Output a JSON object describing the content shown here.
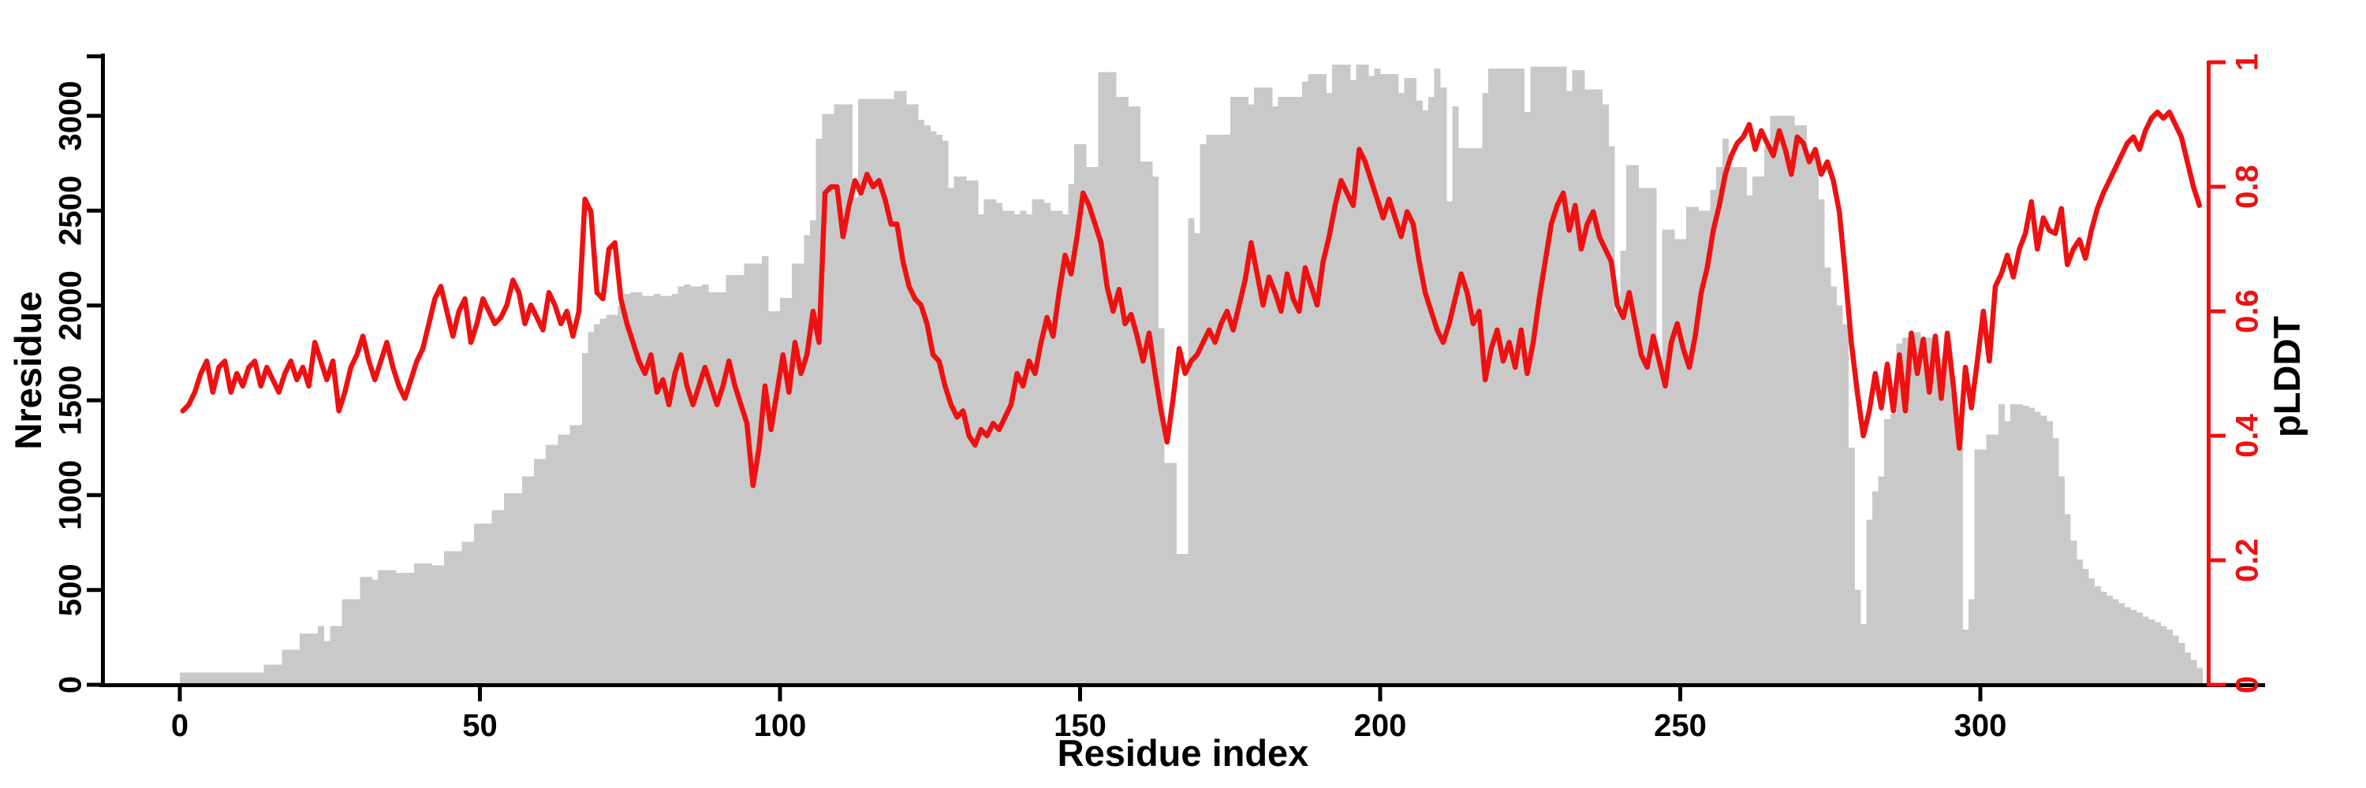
{
  "chart_data": {
    "type": "bar+line",
    "xlabel": "Residue index",
    "ylabel_left": "Nresidue",
    "ylabel_right": "pLDDT",
    "x_ticks": [
      0,
      50,
      100,
      150,
      200,
      250,
      300
    ],
    "y_left_ticks": [
      0,
      500,
      1000,
      1500,
      2000,
      2500,
      3000
    ],
    "y_right_ticks": [
      0,
      0.2,
      0.4,
      0.6,
      0.8,
      1
    ],
    "y_right_tick_labels": [
      "0",
      "0.2",
      "0.4",
      "0.6",
      "0.8",
      "1"
    ],
    "xlim": [
      -13,
      347
    ],
    "ylim_left": [
      0,
      3320
    ],
    "ylim_right": [
      0,
      1.02
    ],
    "grid": false,
    "legend": "none",
    "bar_color": "#c9c9c9",
    "line_color": "#ee1111",
    "axis_color": "#000000",
    "x_start": 0,
    "x_step": 1,
    "series": [
      {
        "name": "Nresidue",
        "type": "bar",
        "axis": "left",
        "values": [
          65,
          65,
          65,
          65,
          65,
          65,
          65,
          65,
          65,
          65,
          65,
          65,
          65,
          65,
          105,
          105,
          105,
          185,
          185,
          185,
          270,
          270,
          270,
          310,
          230,
          310,
          310,
          450,
          450,
          450,
          570,
          570,
          555,
          605,
          605,
          605,
          590,
          590,
          590,
          640,
          640,
          640,
          630,
          630,
          705,
          705,
          705,
          755,
          755,
          850,
          850,
          850,
          920,
          920,
          1010,
          1010,
          1010,
          1100,
          1100,
          1190,
          1190,
          1265,
          1265,
          1320,
          1320,
          1370,
          1370,
          1750,
          1860,
          1900,
          1930,
          1950,
          1950,
          2000,
          2060,
          2070,
          2070,
          2050,
          2050,
          2060,
          2050,
          2050,
          2060,
          2100,
          2110,
          2100,
          2100,
          2110,
          2070,
          2070,
          2070,
          2160,
          2160,
          2160,
          2220,
          2220,
          2220,
          2260,
          1970,
          1970,
          2040,
          2040,
          2220,
          2220,
          2370,
          2450,
          2880,
          3010,
          3010,
          3060,
          3060,
          3060,
          2570,
          3090,
          3090,
          3090,
          3090,
          3090,
          3090,
          3130,
          3130,
          3060,
          3060,
          2980,
          2950,
          2920,
          2900,
          2870,
          2620,
          2680,
          2680,
          2660,
          2660,
          2480,
          2560,
          2560,
          2540,
          2500,
          2500,
          2480,
          2500,
          2480,
          2560,
          2560,
          2540,
          2500,
          2500,
          2480,
          2640,
          2850,
          2850,
          2730,
          2730,
          3230,
          3230,
          3230,
          3100,
          3100,
          3050,
          3050,
          2760,
          2760,
          2680,
          1880,
          1170,
          1170,
          690,
          690,
          2460,
          2380,
          2850,
          2900,
          2900,
          2900,
          2900,
          3100,
          3100,
          3100,
          3060,
          3150,
          3150,
          3150,
          3050,
          3100,
          3100,
          3100,
          3100,
          3180,
          3220,
          3220,
          3220,
          3120,
          3270,
          3270,
          3270,
          3190,
          3270,
          3270,
          3210,
          3250,
          3220,
          3220,
          3220,
          3120,
          3200,
          3200,
          3080,
          3030,
          3100,
          3250,
          3150,
          2550,
          3050,
          2830,
          2830,
          2830,
          2830,
          3120,
          3250,
          3250,
          3250,
          3250,
          3250,
          3250,
          3020,
          3260,
          3260,
          3260,
          3260,
          3260,
          3260,
          3130,
          3240,
          3240,
          3140,
          3140,
          3140,
          3060,
          2840,
          1970,
          2290,
          2740,
          2740,
          2620,
          2620,
          2620,
          1700,
          2400,
          2400,
          2350,
          2350,
          2520,
          2520,
          2500,
          2500,
          2610,
          2730,
          2880,
          2730,
          2730,
          2730,
          2580,
          2680,
          2680,
          2840,
          3000,
          3000,
          3000,
          3000,
          2950,
          2950,
          2800,
          2800,
          2560,
          2200,
          2100,
          2000,
          1900,
          1250,
          500,
          320,
          870,
          1020,
          1100,
          1400,
          1430,
          1800,
          1830,
          1860,
          1860,
          1830,
          1830,
          1810,
          1720,
          1810,
          1540,
          1390,
          290,
          450,
          1240,
          1240,
          1320,
          1320,
          1480,
          1390,
          1480,
          1480,
          1470,
          1460,
          1440,
          1420,
          1390,
          1300,
          1100,
          900,
          760,
          660,
          610,
          560,
          520,
          490,
          470,
          450,
          430,
          410,
          395,
          380,
          360,
          345,
          330,
          310,
          290,
          260,
          220,
          170,
          130,
          90
        ]
      },
      {
        "name": "pLDDT",
        "type": "line",
        "axis": "right",
        "values": [
          0.44,
          0.45,
          0.47,
          0.5,
          0.52,
          0.47,
          0.51,
          0.52,
          0.47,
          0.5,
          0.48,
          0.51,
          0.52,
          0.48,
          0.51,
          0.49,
          0.47,
          0.5,
          0.52,
          0.49,
          0.51,
          0.48,
          0.55,
          0.52,
          0.49,
          0.52,
          0.44,
          0.47,
          0.51,
          0.53,
          0.56,
          0.52,
          0.49,
          0.52,
          0.55,
          0.51,
          0.48,
          0.46,
          0.49,
          0.52,
          0.54,
          0.58,
          0.62,
          0.64,
          0.6,
          0.56,
          0.6,
          0.62,
          0.55,
          0.58,
          0.62,
          0.6,
          0.58,
          0.59,
          0.61,
          0.65,
          0.63,
          0.58,
          0.61,
          0.59,
          0.57,
          0.63,
          0.61,
          0.58,
          0.6,
          0.56,
          0.6,
          0.78,
          0.76,
          0.63,
          0.62,
          0.7,
          0.71,
          0.62,
          0.58,
          0.55,
          0.52,
          0.5,
          0.53,
          0.47,
          0.49,
          0.45,
          0.5,
          0.53,
          0.48,
          0.45,
          0.48,
          0.51,
          0.48,
          0.45,
          0.48,
          0.52,
          0.48,
          0.45,
          0.42,
          0.32,
          0.38,
          0.48,
          0.41,
          0.47,
          0.53,
          0.47,
          0.55,
          0.5,
          0.53,
          0.6,
          0.55,
          0.79,
          0.8,
          0.8,
          0.72,
          0.77,
          0.81,
          0.79,
          0.82,
          0.8,
          0.81,
          0.78,
          0.74,
          0.74,
          0.68,
          0.64,
          0.62,
          0.61,
          0.58,
          0.53,
          0.52,
          0.48,
          0.45,
          0.43,
          0.44,
          0.4,
          0.385,
          0.41,
          0.4,
          0.42,
          0.41,
          0.43,
          0.45,
          0.5,
          0.48,
          0.52,
          0.5,
          0.55,
          0.59,
          0.56,
          0.63,
          0.69,
          0.66,
          0.72,
          0.79,
          0.77,
          0.74,
          0.71,
          0.64,
          0.6,
          0.635,
          0.58,
          0.595,
          0.56,
          0.52,
          0.565,
          0.5,
          0.44,
          0.39,
          0.46,
          0.54,
          0.5,
          0.52,
          0.53,
          0.55,
          0.57,
          0.55,
          0.58,
          0.6,
          0.57,
          0.61,
          0.65,
          0.71,
          0.66,
          0.61,
          0.655,
          0.63,
          0.6,
          0.66,
          0.62,
          0.6,
          0.67,
          0.64,
          0.61,
          0.68,
          0.72,
          0.77,
          0.81,
          0.79,
          0.77,
          0.86,
          0.84,
          0.81,
          0.78,
          0.75,
          0.78,
          0.75,
          0.72,
          0.76,
          0.74,
          0.68,
          0.63,
          0.6,
          0.57,
          0.55,
          0.58,
          0.62,
          0.66,
          0.63,
          0.58,
          0.6,
          0.49,
          0.54,
          0.57,
          0.52,
          0.55,
          0.51,
          0.57,
          0.5,
          0.55,
          0.62,
          0.68,
          0.74,
          0.77,
          0.79,
          0.73,
          0.77,
          0.7,
          0.74,
          0.76,
          0.72,
          0.7,
          0.68,
          0.61,
          0.59,
          0.63,
          0.58,
          0.53,
          0.51,
          0.56,
          0.52,
          0.48,
          0.55,
          0.58,
          0.54,
          0.51,
          0.56,
          0.63,
          0.67,
          0.73,
          0.77,
          0.82,
          0.85,
          0.87,
          0.88,
          0.9,
          0.86,
          0.89,
          0.87,
          0.85,
          0.89,
          0.86,
          0.82,
          0.88,
          0.87,
          0.84,
          0.86,
          0.82,
          0.84,
          0.81,
          0.76,
          0.66,
          0.55,
          0.47,
          0.4,
          0.44,
          0.5,
          0.445,
          0.515,
          0.44,
          0.53,
          0.44,
          0.565,
          0.5,
          0.555,
          0.47,
          0.56,
          0.46,
          0.565,
          0.48,
          0.38,
          0.51,
          0.445,
          0.52,
          0.6,
          0.52,
          0.64,
          0.66,
          0.69,
          0.655,
          0.7,
          0.725,
          0.776,
          0.7,
          0.75,
          0.73,
          0.725,
          0.765,
          0.675,
          0.7,
          0.715,
          0.685,
          0.73,
          0.765,
          0.79,
          0.81,
          0.83,
          0.85,
          0.87,
          0.88,
          0.86,
          0.89,
          0.91,
          0.92,
          0.91,
          0.92,
          0.9,
          0.88,
          0.84,
          0.8,
          0.77
        ]
      }
    ]
  }
}
